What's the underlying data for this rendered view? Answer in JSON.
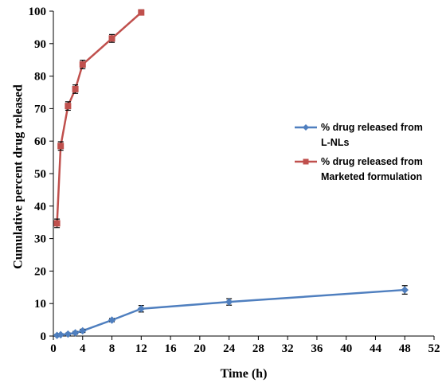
{
  "chart_data": {
    "type": "line",
    "title": "",
    "xlabel": "Time (h)",
    "ylabel": "Cumulative percent drug released",
    "xlim": [
      0,
      52
    ],
    "ylim": [
      0,
      100
    ],
    "xticks": [
      0,
      4,
      8,
      12,
      16,
      20,
      24,
      28,
      32,
      36,
      40,
      44,
      48,
      52
    ],
    "yticks": [
      0,
      10,
      20,
      30,
      40,
      50,
      60,
      70,
      80,
      90,
      100
    ],
    "grid": false,
    "legend_position": "right",
    "series": [
      {
        "name_lines": [
          "% drug released from",
          "L-NLs"
        ],
        "color": "#4f7fbf",
        "marker": "diamond",
        "x": [
          0.5,
          1,
          2,
          3,
          4,
          8,
          12,
          24,
          48
        ],
        "y": [
          0.2,
          0.4,
          0.6,
          1.0,
          1.6,
          4.9,
          8.4,
          10.5,
          14.2
        ],
        "err": [
          0.3,
          0.3,
          0.3,
          0.4,
          0.5,
          0.5,
          1.0,
          1.0,
          1.3
        ]
      },
      {
        "name_lines": [
          "% drug released from",
          "Marketed formulation"
        ],
        "color": "#c0504d",
        "marker": "square",
        "x": [
          0.5,
          1,
          2,
          3,
          4,
          8,
          12
        ],
        "y": [
          34.7,
          58.5,
          70.8,
          76.0,
          83.6,
          91.6,
          99.6
        ],
        "err": [
          1.3,
          1.3,
          1.3,
          1.3,
          1.3,
          1.2,
          0.8
        ]
      }
    ]
  }
}
